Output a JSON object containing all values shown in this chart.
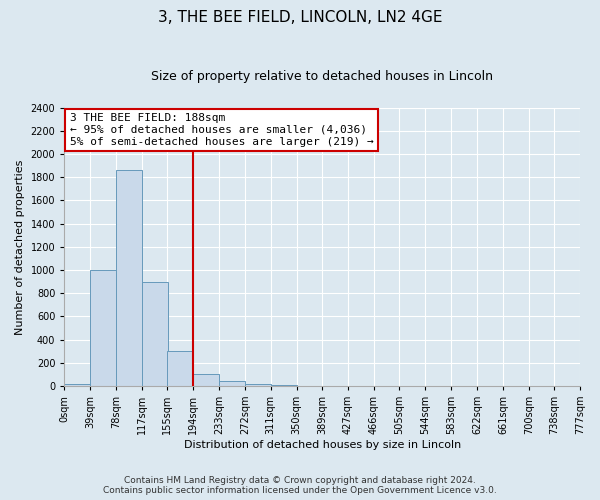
{
  "title": "3, THE BEE FIELD, LINCOLN, LN2 4GE",
  "subtitle": "Size of property relative to detached houses in Lincoln",
  "xlabel": "Distribution of detached houses by size in Lincoln",
  "ylabel": "Number of detached properties",
  "bin_edges": [
    0,
    39,
    78,
    117,
    155,
    194,
    233,
    272,
    311,
    350,
    389,
    427,
    466,
    505,
    544,
    583,
    622,
    661,
    700,
    738,
    777
  ],
  "bin_labels": [
    "0sqm",
    "39sqm",
    "78sqm",
    "117sqm",
    "155sqm",
    "194sqm",
    "233sqm",
    "272sqm",
    "311sqm",
    "350sqm",
    "389sqm",
    "427sqm",
    "466sqm",
    "505sqm",
    "544sqm",
    "583sqm",
    "622sqm",
    "661sqm",
    "700sqm",
    "738sqm",
    "777sqm"
  ],
  "bar_heights": [
    20,
    1000,
    1860,
    900,
    300,
    100,
    45,
    20,
    5,
    0,
    0,
    0,
    0,
    0,
    0,
    0,
    0,
    0,
    0,
    0
  ],
  "bar_color": "#c9d9ea",
  "bar_edgecolor": "#6699bb",
  "property_line_x": 194,
  "property_line_color": "#cc0000",
  "ylim": [
    0,
    2400
  ],
  "yticks": [
    0,
    200,
    400,
    600,
    800,
    1000,
    1200,
    1400,
    1600,
    1800,
    2000,
    2200,
    2400
  ],
  "annotation_line1": "3 THE BEE FIELD: 188sqm",
  "annotation_line2": "← 95% of detached houses are smaller (4,036)",
  "annotation_line3": "5% of semi-detached houses are larger (219) →",
  "annotation_box_color": "#ffffff",
  "annotation_box_edgecolor": "#cc0000",
  "footer_line1": "Contains HM Land Registry data © Crown copyright and database right 2024.",
  "footer_line2": "Contains public sector information licensed under the Open Government Licence v3.0.",
  "background_color": "#dce8f0",
  "plot_background_color": "#dce8f0",
  "grid_color": "#ffffff",
  "title_fontsize": 11,
  "subtitle_fontsize": 9,
  "axis_label_fontsize": 8,
  "tick_fontsize": 7,
  "annotation_fontsize": 8,
  "footer_fontsize": 6.5
}
